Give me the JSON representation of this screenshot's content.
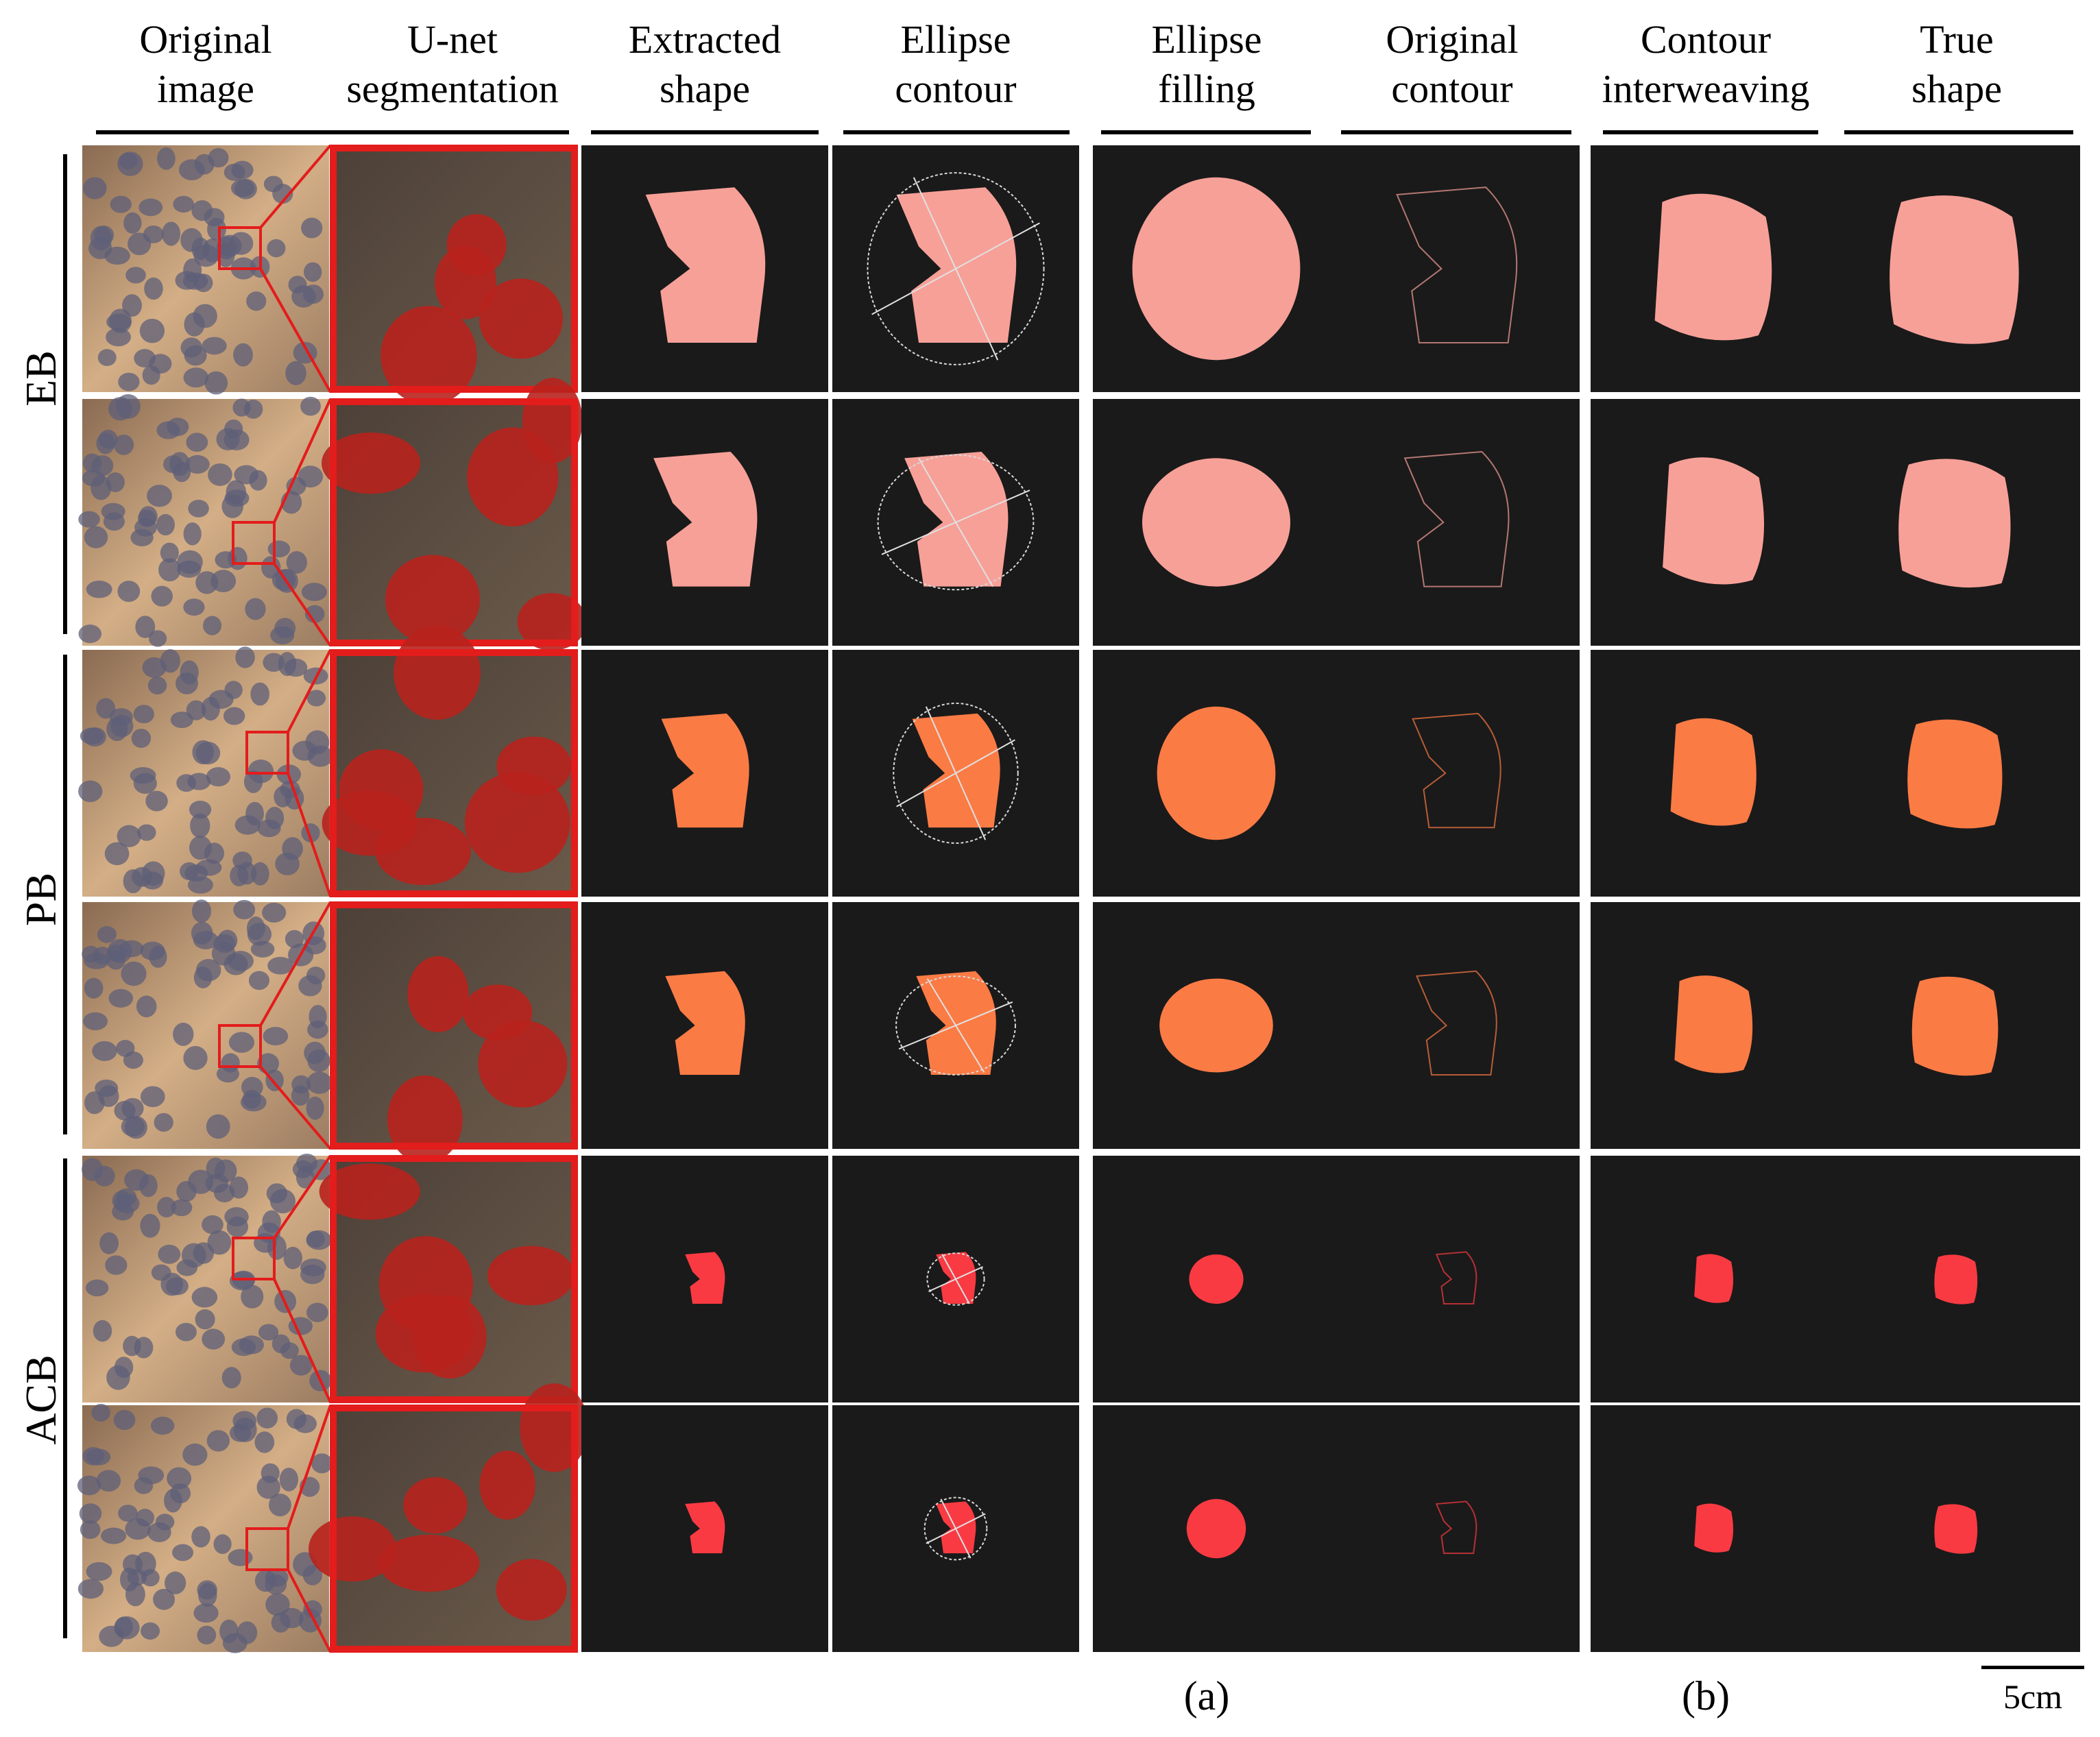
{
  "columns": [
    {
      "label": "Original\nimage"
    },
    {
      "label": "U-net\nsegmentation"
    },
    {
      "label": "Extracted\nshape"
    },
    {
      "label": "Ellipse\ncontour"
    },
    {
      "label": "Ellipse\nfilling"
    },
    {
      "label": "Original\ncontour"
    },
    {
      "label": "Contour\ninterweaving"
    },
    {
      "label": "True\nshape"
    }
  ],
  "groups": [
    {
      "label": "EB",
      "color": "#F7A098"
    },
    {
      "label": "PB",
      "color": "#FB7B45"
    },
    {
      "label": "ACB",
      "color": "#F93A42"
    }
  ],
  "captions": {
    "a": "(a)",
    "b": "(b)"
  },
  "scale_bar": {
    "label": "5cm"
  },
  "colors": {
    "panel_bg": "#1A1A1A",
    "zoom_frame": "#E31C1C",
    "photo_tone": "#C9A37E",
    "cell_tone": "#5E5F78",
    "unet_bg": "#5A4A3E",
    "unet_blob": "#B8221D"
  }
}
